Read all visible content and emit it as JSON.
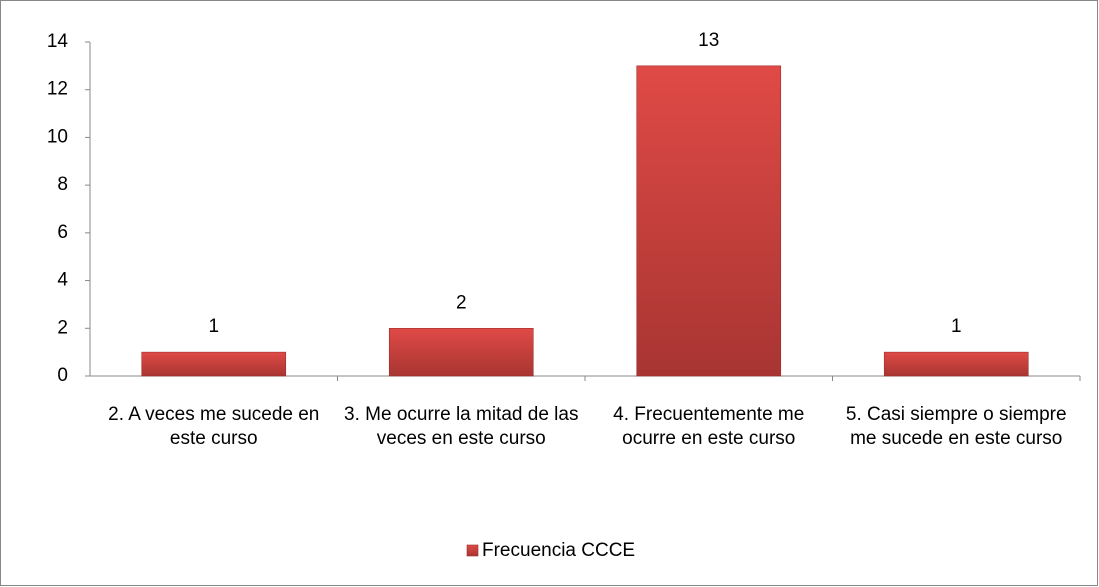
{
  "chart_data": {
    "type": "bar",
    "categories": [
      "2. A veces me sucede en este curso",
      "3. Me ocurre la mitad de las veces en este curso",
      "4. Frecuentemente me ocurre en este curso",
      "5. Casi siempre o siempre me sucede en este curso"
    ],
    "series": [
      {
        "name": "Frecuencia CCCE",
        "color": "#c0504d",
        "values": [
          1,
          2,
          13,
          1
        ]
      }
    ],
    "ylim": [
      0,
      14
    ],
    "yticks": [
      0,
      2,
      4,
      6,
      8,
      10,
      12,
      14
    ],
    "grid": false,
    "legend": "bottom"
  }
}
